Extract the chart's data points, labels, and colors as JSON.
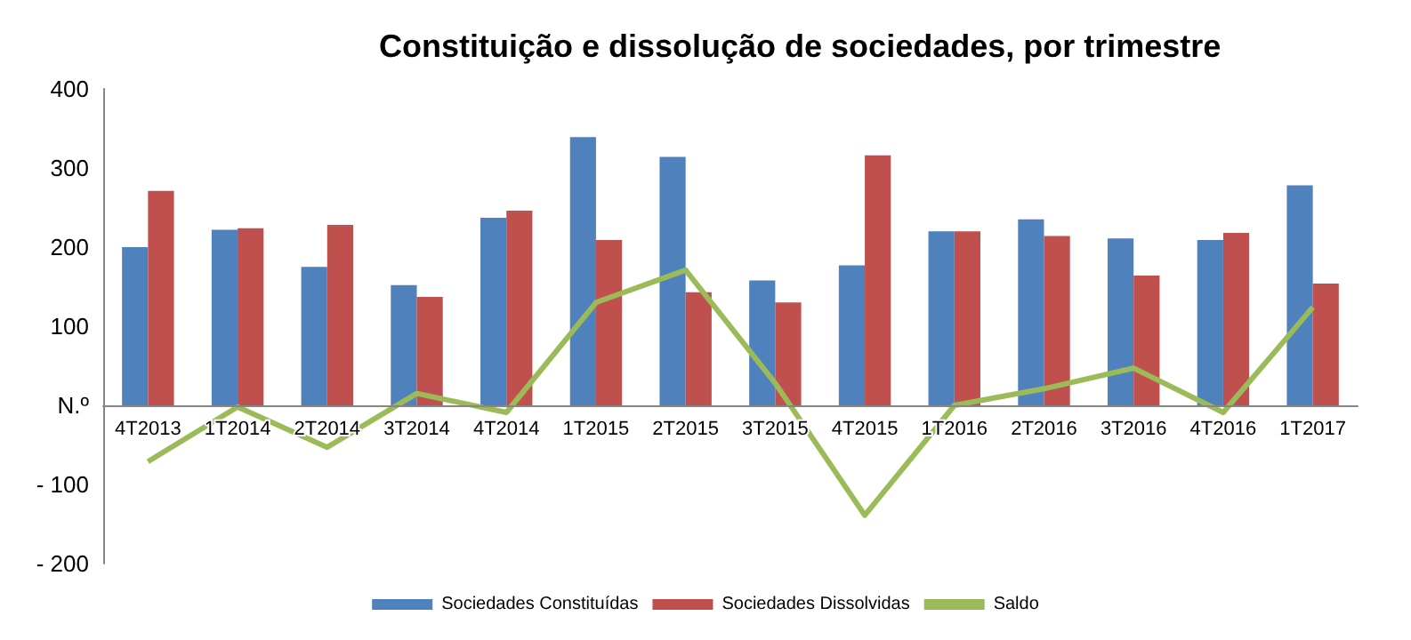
{
  "chart_data": {
    "type": "bar",
    "title": "Constituição e dissolução de sociedades, por trimestre",
    "categories": [
      "4T2013",
      "1T2014",
      "2T2014",
      "3T2014",
      "4T2014",
      "1T2015",
      "2T2015",
      "3T2015",
      "4T2015",
      "1T2016",
      "2T2016",
      "3T2016",
      "4T2016",
      "1T2017"
    ],
    "series": [
      {
        "name": "Sociedades Constituídas",
        "color": "#4f81bd",
        "values": [
          200,
          222,
          175,
          152,
          237,
          339,
          314,
          158,
          177,
          220,
          235,
          211,
          209,
          278
        ]
      },
      {
        "name": "Sociedades Dissolvidas",
        "color": "#c0504d",
        "values": [
          271,
          224,
          228,
          137,
          246,
          209,
          143,
          130,
          316,
          220,
          214,
          164,
          218,
          154
        ]
      },
      {
        "name": "Saldo",
        "type": "line",
        "color": "#9bbb59",
        "values": [
          -71,
          -2,
          -53,
          15,
          -9,
          130,
          171,
          28,
          -139,
          0,
          21,
          47,
          -9,
          124
        ]
      }
    ],
    "ylim": [
      -200,
      400
    ],
    "yticks": [
      {
        "value": -200,
        "label": "- 200"
      },
      {
        "value": -100,
        "label": "- 100"
      },
      {
        "value": 0,
        "label": "N.º"
      },
      400,
      300,
      200,
      100
    ],
    "grid": false,
    "legend": "bottom",
    "marker": "none"
  }
}
